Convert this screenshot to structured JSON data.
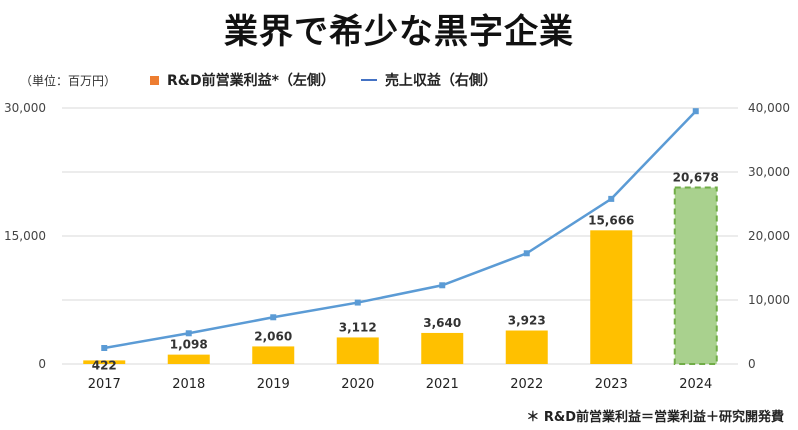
{
  "title": "業界で希少な黒字企業",
  "unit_label": "（単位：百万円）",
  "footnote": "＊ R&D前営業利益＝営業利益＋研究開発費",
  "colors": {
    "bar": "#FFC000",
    "bar_forecast": "#A9D18E",
    "bar_forecast_border": "#70AD47",
    "line": "#5B9BD5",
    "legend_bar": "#ED7D31",
    "legend_line": "#4472C4",
    "grid": "#D9D9D9"
  },
  "chart_data": {
    "type": "bar",
    "categories": [
      "2017",
      "2018",
      "2019",
      "2020",
      "2021",
      "2022",
      "2023",
      "2024"
    ],
    "series": [
      {
        "name": "R&D前営業利益*（左側）",
        "type": "bar",
        "axis": "left",
        "values": [
          422,
          1098,
          2060,
          3112,
          3640,
          3923,
          15666,
          20678
        ],
        "labels": [
          "422",
          "1,098",
          "2,060",
          "3,112",
          "3,640",
          "3,923",
          "15,666",
          "20,678"
        ],
        "forecast_last": true
      },
      {
        "name": "売上収益（右側）",
        "type": "line",
        "axis": "right",
        "values": [
          2500,
          4800,
          7300,
          9600,
          12300,
          17300,
          25800,
          39500
        ]
      }
    ],
    "y_left": {
      "ylim": [
        0,
        30000
      ],
      "ticks": [
        "0",
        "15,000",
        "30,000"
      ]
    },
    "y_right": {
      "ylim": [
        0,
        40000
      ],
      "ticks": [
        "0",
        "10,000",
        "20,000",
        "30,000",
        "40,000"
      ]
    },
    "grid": true,
    "legend": "top"
  }
}
